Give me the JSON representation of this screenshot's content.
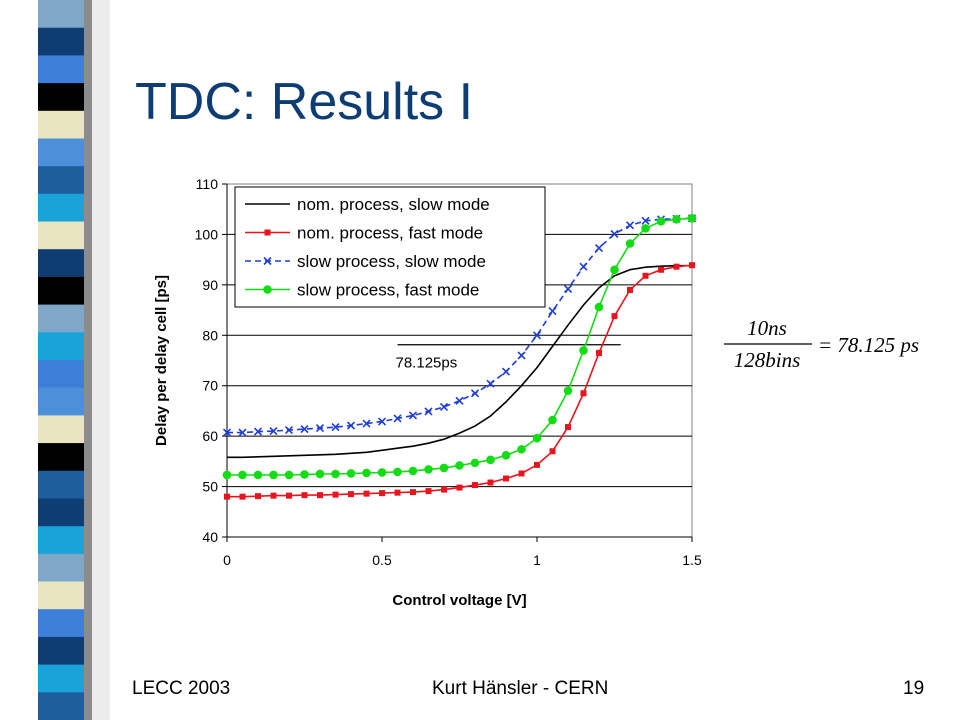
{
  "slide": {
    "title": "TDC: Results I",
    "footer_left": "LECC 2003",
    "footer_center": "Kurt Hänsler - CERN",
    "footer_right": "19"
  },
  "formula": {
    "numerator": "10ns",
    "denominator": "128bins",
    "result": "= 78.125 ps"
  },
  "decor_colors": [
    "#ffffff",
    "#1aa3d9",
    "#7fa8c8",
    "#0d3d73",
    "#3d7fd9",
    "#000000",
    "#e8e5c0",
    "#4d8fd9",
    "#1c5f9c"
  ],
  "chart_data": {
    "type": "line",
    "title": "",
    "xlabel": "Control voltage [V]",
    "ylabel": "Delay per delay cell [ps]",
    "xlim": [
      0,
      1.5
    ],
    "ylim": [
      40,
      110
    ],
    "xticks": [
      0,
      0.5,
      1,
      1.5
    ],
    "xtick_labels": [
      "0",
      "0.5",
      "1",
      "1.5"
    ],
    "yticks": [
      40,
      50,
      60,
      70,
      80,
      90,
      100,
      110
    ],
    "ytick_labels": [
      "40",
      "50",
      "60",
      "70",
      "80",
      "90",
      "100",
      "110"
    ],
    "grid": "horizontal",
    "legend_position": "top-left",
    "annotation": {
      "text": "78.125ps",
      "y": 78.125,
      "x_start": 0.55,
      "x_end": 1.27
    },
    "x": [
      0,
      0.05,
      0.1,
      0.15,
      0.2,
      0.25,
      0.3,
      0.35,
      0.4,
      0.45,
      0.5,
      0.55,
      0.6,
      0.65,
      0.7,
      0.75,
      0.8,
      0.85,
      0.9,
      0.95,
      1.0,
      1.05,
      1.1,
      1.15,
      1.2,
      1.25,
      1.3,
      1.35,
      1.4,
      1.45,
      1.5
    ],
    "series": [
      {
        "name": "nom. process, slow mode",
        "color": "#000000",
        "marker": "none",
        "values": [
          55.8,
          55.8,
          55.9,
          56.0,
          56.1,
          56.2,
          56.3,
          56.4,
          56.6,
          56.8,
          57.2,
          57.6,
          58.0,
          58.6,
          59.4,
          60.6,
          62.0,
          64.0,
          66.8,
          70.0,
          73.6,
          77.8,
          82.0,
          86.0,
          89.4,
          91.8,
          93.0,
          93.5,
          93.7,
          93.8,
          93.8
        ]
      },
      {
        "name": "nom. process, fast mode",
        "color": "#e8141e",
        "marker": "square",
        "values": [
          48.0,
          48.0,
          48.1,
          48.2,
          48.2,
          48.3,
          48.3,
          48.4,
          48.5,
          48.6,
          48.7,
          48.8,
          48.9,
          49.1,
          49.4,
          49.8,
          50.3,
          50.8,
          51.6,
          52.6,
          54.3,
          57.0,
          61.8,
          68.5,
          76.5,
          83.8,
          89.0,
          91.8,
          93.0,
          93.6,
          93.9
        ]
      },
      {
        "name": "slow process, slow mode",
        "color": "#1e3cd7",
        "marker": "x",
        "values": [
          60.7,
          60.7,
          60.9,
          61.0,
          61.2,
          61.4,
          61.6,
          61.8,
          62.1,
          62.5,
          62.9,
          63.5,
          64.1,
          64.9,
          65.8,
          67.0,
          68.5,
          70.4,
          72.8,
          76.0,
          80.0,
          84.8,
          89.2,
          93.6,
          97.3,
          100.1,
          101.8,
          102.7,
          103.0,
          103.1,
          103.2
        ]
      },
      {
        "name": "slow process, fast mode",
        "color": "#14dc14",
        "marker": "circle",
        "values": [
          52.3,
          52.3,
          52.3,
          52.3,
          52.3,
          52.4,
          52.5,
          52.5,
          52.6,
          52.7,
          52.8,
          52.9,
          53.1,
          53.4,
          53.7,
          54.2,
          54.7,
          55.3,
          56.2,
          57.4,
          59.6,
          63.2,
          69.0,
          77.0,
          85.6,
          93.0,
          98.2,
          101.2,
          102.6,
          103.0,
          103.2
        ]
      }
    ]
  }
}
